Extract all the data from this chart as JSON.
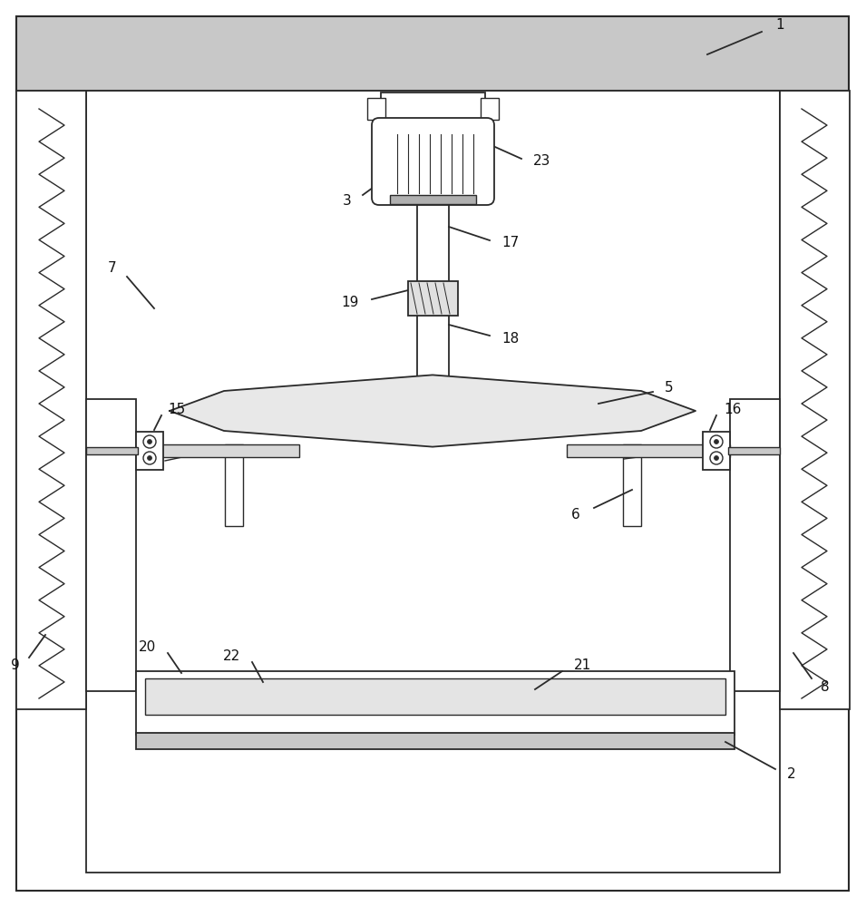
{
  "bg_color": "#ffffff",
  "lc": "#2a2a2a",
  "fig_width": 9.55,
  "fig_height": 10.0
}
